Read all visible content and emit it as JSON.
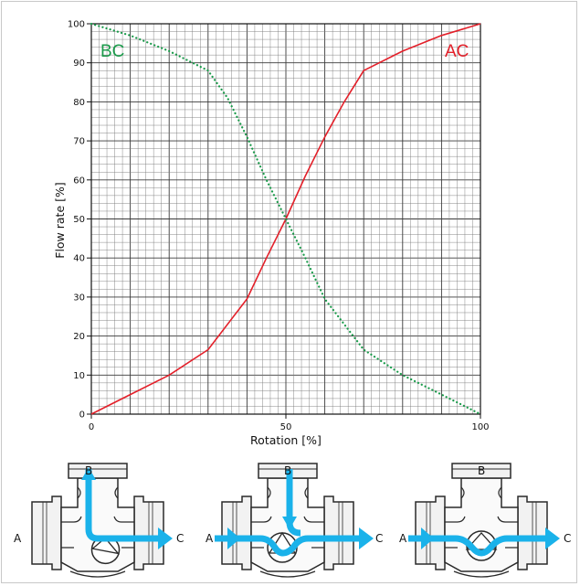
{
  "chart_data": {
    "type": "line",
    "title": "",
    "xlabel": "Rotation [%]",
    "ylabel": "Flow rate [%]",
    "xlim": [
      0,
      100
    ],
    "ylim": [
      0,
      100
    ],
    "x_ticks": [
      "0",
      "50",
      "100"
    ],
    "y_ticks": [
      "0",
      "10",
      "20",
      "30",
      "40",
      "50",
      "60",
      "70",
      "80",
      "90",
      "100"
    ],
    "grid": true,
    "series": [
      {
        "name": "AC",
        "color": "#e3202a",
        "style": "solid",
        "x": [
          0,
          10,
          20,
          30,
          40,
          45,
          50,
          55,
          60,
          65,
          70,
          80,
          90,
          100
        ],
        "y": [
          0,
          5,
          10,
          16.5,
          29.5,
          40,
          50,
          61,
          71,
          80,
          88,
          93,
          97,
          100
        ]
      },
      {
        "name": "BC",
        "color": "#1a9a4a",
        "style": "dotted",
        "x": [
          0,
          10,
          20,
          30,
          35,
          40,
          45,
          50,
          55,
          60,
          70,
          80,
          90,
          100
        ],
        "y": [
          100,
          97,
          93,
          88,
          81,
          71,
          60,
          50,
          40,
          29.5,
          16.5,
          10,
          5,
          0
        ]
      }
    ]
  },
  "diagrams": [
    {
      "name": "valve-diagram-left",
      "labels": {
        "a": "A",
        "b": "B",
        "c": "C"
      }
    },
    {
      "name": "valve-diagram-middle",
      "labels": {
        "a": "A",
        "b": "B",
        "c": "C"
      }
    },
    {
      "name": "valve-diagram-right",
      "labels": {
        "a": "A",
        "b": "B",
        "c": "C"
      }
    }
  ],
  "colors": {
    "flow_arrow": "#1ab2ea",
    "grid": "#7a7a7a",
    "valve_body": "#2a2a2a"
  }
}
